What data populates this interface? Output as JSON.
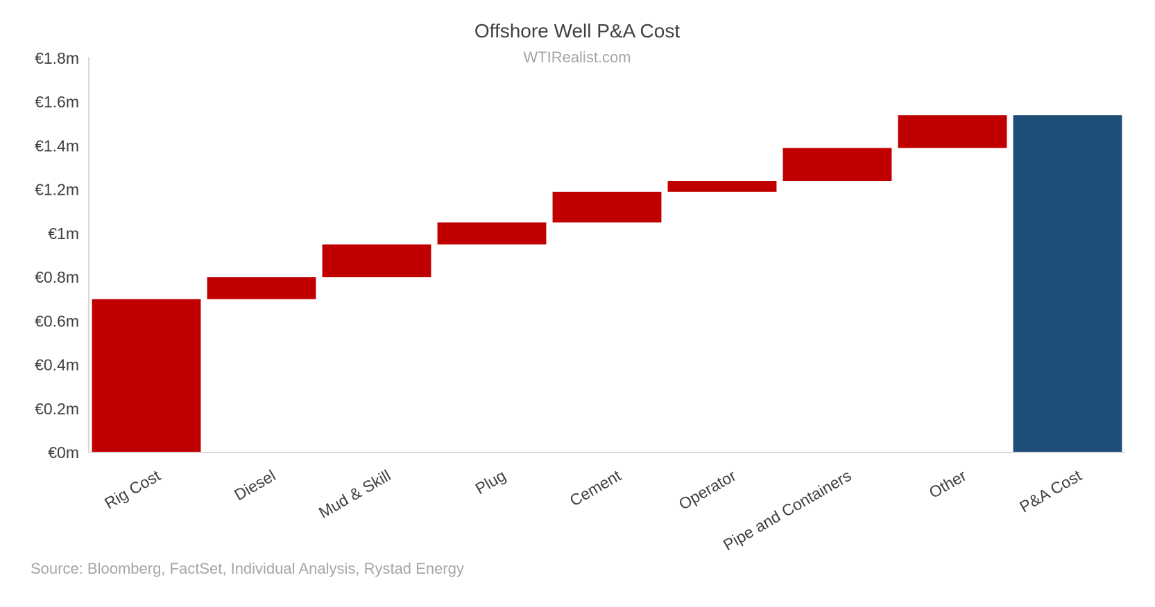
{
  "chart_data": {
    "type": "waterfall",
    "title": "Offshore Well P&A Cost",
    "subtitle": "WTIRealist.com",
    "source": "Source: Bloomberg, FactSet, Individual Analysis, Rystad Energy",
    "categories": [
      "Rig Cost",
      "Diesel",
      "Mud & Skill",
      "Plug",
      "Cement",
      "Operator",
      "Pipe and Containers",
      "Other",
      "P&A Cost"
    ],
    "bars": [
      {
        "category": "Rig Cost",
        "start": 0,
        "end": 0.7,
        "kind": "increase"
      },
      {
        "category": "Diesel",
        "start": 0.7,
        "end": 0.8,
        "kind": "increase"
      },
      {
        "category": "Mud & Skill",
        "start": 0.8,
        "end": 0.95,
        "kind": "increase"
      },
      {
        "category": "Plug",
        "start": 0.95,
        "end": 1.05,
        "kind": "increase"
      },
      {
        "category": "Cement",
        "start": 1.05,
        "end": 1.19,
        "kind": "increase"
      },
      {
        "category": "Operator",
        "start": 1.19,
        "end": 1.24,
        "kind": "increase"
      },
      {
        "category": "Pipe and Containers",
        "start": 1.24,
        "end": 1.39,
        "kind": "increase"
      },
      {
        "category": "Other",
        "start": 1.39,
        "end": 1.54,
        "kind": "increase"
      },
      {
        "category": "P&A Cost",
        "start": 0,
        "end": 1.54,
        "kind": "total"
      }
    ],
    "ylim": [
      0,
      1.8
    ],
    "yticks": [
      {
        "value": 0,
        "label": "€0m"
      },
      {
        "value": 0.2,
        "label": "€0.2m"
      },
      {
        "value": 0.4,
        "label": "€0.4m"
      },
      {
        "value": 0.6,
        "label": "€0.6m"
      },
      {
        "value": 0.8,
        "label": "€0.8m"
      },
      {
        "value": 1.0,
        "label": "€1m"
      },
      {
        "value": 1.2,
        "label": "€1.2m"
      },
      {
        "value": 1.4,
        "label": "€1.4m"
      },
      {
        "value": 1.6,
        "label": "€1.6m"
      },
      {
        "value": 1.8,
        "label": "€1.8m"
      }
    ],
    "grid": false,
    "colors": {
      "increase": "#c00000",
      "total": "#1f4e79",
      "axis": "#d9d9d9"
    }
  }
}
